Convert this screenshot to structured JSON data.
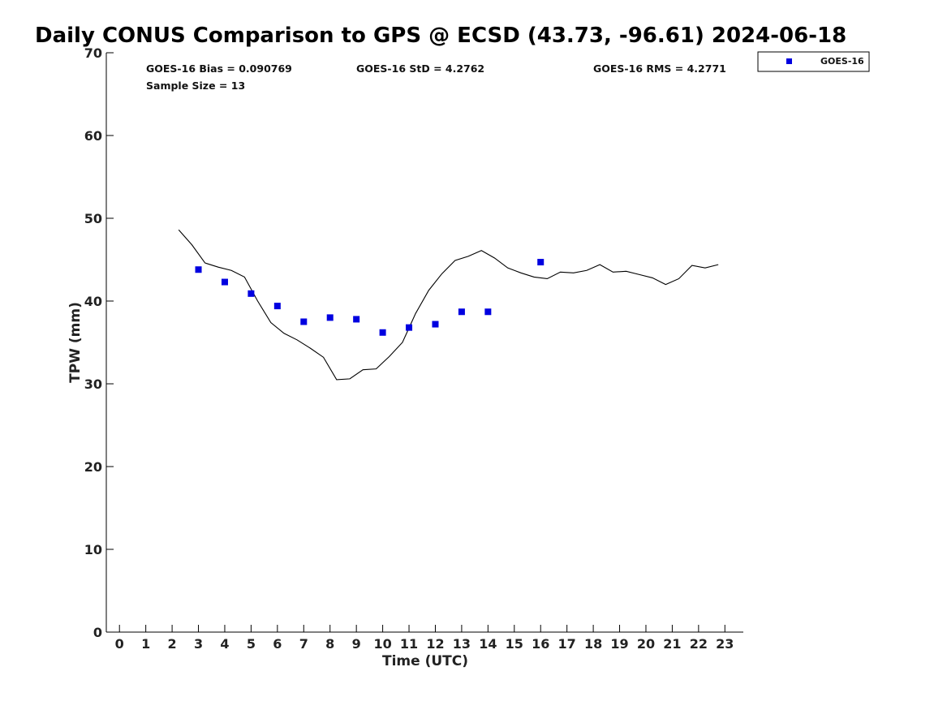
{
  "chart_data": {
    "type": "scatter",
    "title": "Daily CONUS Comparison to GPS @ ECSD (43.73, -96.61) 2024-06-18",
    "xlabel": "Time (UTC)",
    "ylabel": "TPW (mm)",
    "xlim": [
      -0.5,
      23.7
    ],
    "ylim": [
      0,
      70
    ],
    "x_ticks": [
      0,
      1,
      2,
      3,
      4,
      5,
      6,
      7,
      8,
      9,
      10,
      11,
      12,
      13,
      14,
      15,
      16,
      17,
      18,
      19,
      20,
      21,
      22,
      23
    ],
    "y_ticks": [
      0,
      10,
      20,
      30,
      40,
      50,
      60,
      70
    ],
    "grid": false,
    "legend_position": "top-right outside",
    "stats": {
      "bias": "GOES-16 Bias = 0.090769",
      "std": "GOES-16 StD = 4.2762",
      "rms": "GOES-16 RMS = 4.2771",
      "sample_size": "Sample Size = 13"
    },
    "series": [
      {
        "name": "GOES-16",
        "kind": "scatter",
        "marker": "square",
        "color": "#0000e0",
        "x": [
          3,
          4,
          5,
          6,
          7,
          8,
          9,
          10,
          11,
          12,
          13,
          14,
          16
        ],
        "y": [
          43.8,
          42.3,
          40.9,
          39.4,
          37.5,
          38.0,
          37.8,
          36.2,
          36.8,
          37.2,
          38.7,
          38.7,
          44.7
        ]
      },
      {
        "kind": "line",
        "color": "#000000",
        "x": [
          2.25,
          2.75,
          3.25,
          3.75,
          4.25,
          4.75,
          5.25,
          5.75,
          6.25,
          6.75,
          7.25,
          7.75,
          8.25,
          8.75,
          9.25,
          9.75,
          10.25,
          10.75,
          11.25,
          11.75,
          12.25,
          12.75,
          13.25,
          13.75,
          14.25,
          14.75,
          15.25,
          15.75,
          16.25,
          16.75,
          17.25,
          17.75,
          18.25,
          18.75,
          19.25,
          19.75,
          20.25,
          20.75,
          21.25,
          21.75,
          22.25,
          22.75
        ],
        "y": [
          48.6,
          46.8,
          44.6,
          44.1,
          43.7,
          42.9,
          40.0,
          37.4,
          36.1,
          35.3,
          34.3,
          33.2,
          30.5,
          30.6,
          31.7,
          31.8,
          33.3,
          35.0,
          38.5,
          41.3,
          43.3,
          44.9,
          45.4,
          46.1,
          45.2,
          44.0,
          43.4,
          42.9,
          42.7,
          43.5,
          43.4,
          43.7,
          44.4,
          43.5,
          43.6,
          43.2,
          42.8,
          42.0,
          42.7,
          44.3,
          44.0,
          44.4
        ]
      }
    ]
  }
}
